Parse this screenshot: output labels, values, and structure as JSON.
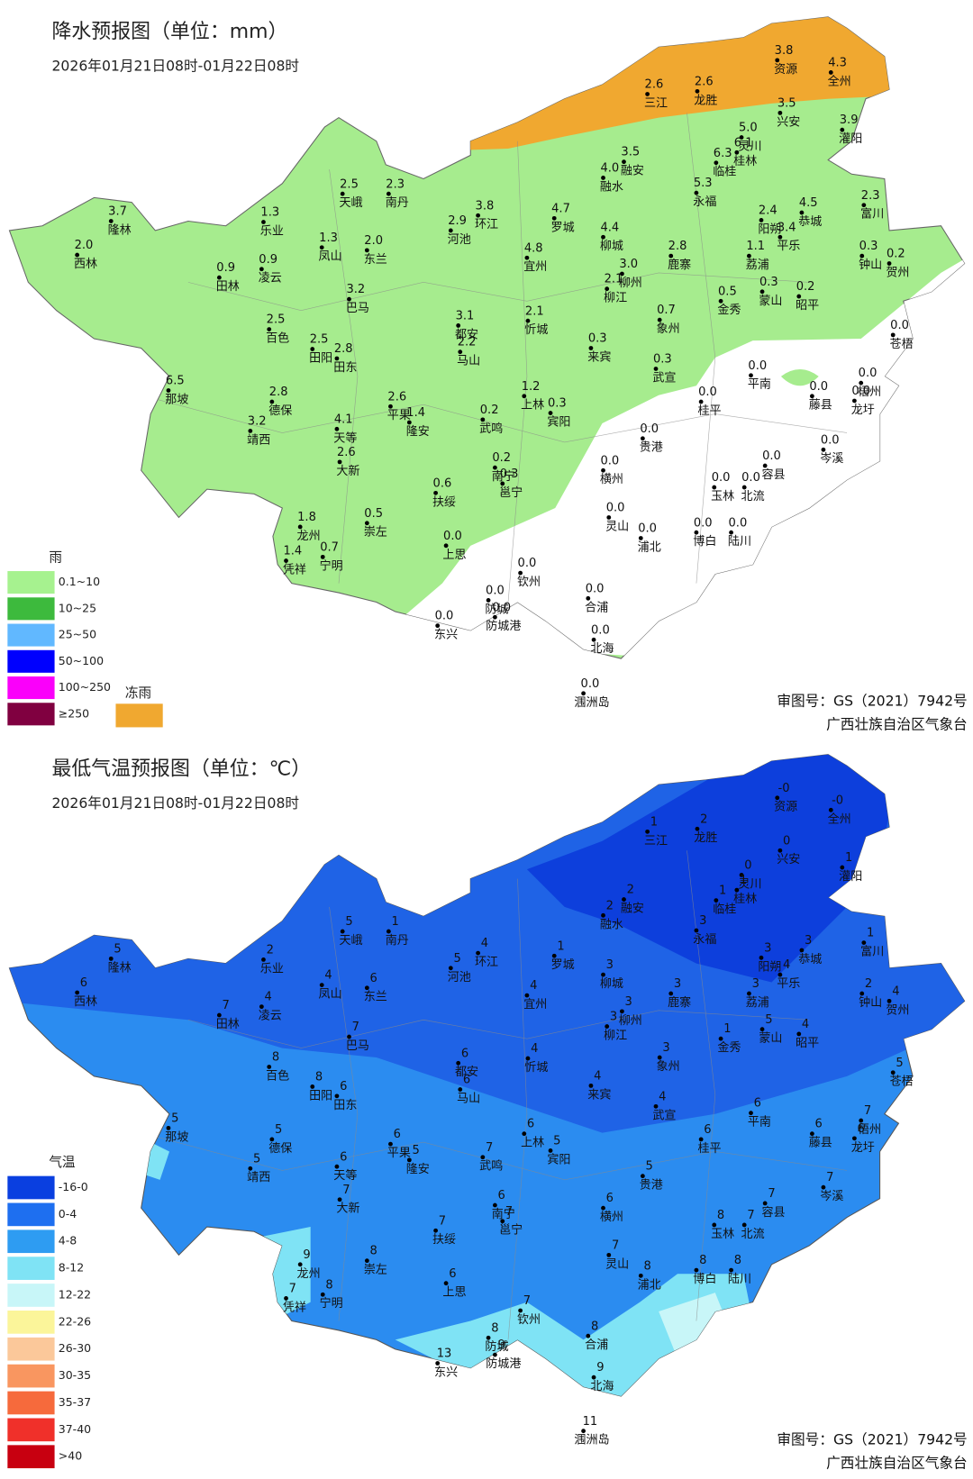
{
  "maps": [
    {
      "title": "降水预报图（单位：mm）",
      "period": "2026年01月21日08时-01月22日08时",
      "legend": {
        "title": "雨",
        "items": [
          {
            "label": "0.1~10",
            "color": "#a6f28f"
          },
          {
            "label": "10~25",
            "color": "#3dba3d"
          },
          {
            "label": "25~50",
            "color": "#61b8ff"
          },
          {
            "label": "50~100",
            "color": "#0000fe"
          },
          {
            "label": "100~250",
            "color": "#fa00fa"
          },
          {
            "label": "≥250",
            "color": "#800040"
          }
        ]
      },
      "extra_legend": {
        "label": "冻雨",
        "color": "#f0a830"
      },
      "approval": "审图号：GS（2021）7942号",
      "issuer": "广西壮族自治区气象台",
      "stations": [
        {
          "name": "三江",
          "value": "2.6"
        },
        {
          "name": "龙胜",
          "value": "2.6"
        },
        {
          "name": "资源",
          "value": "3.8"
        },
        {
          "name": "全州",
          "value": "4.3"
        },
        {
          "name": "兴安",
          "value": "3.5"
        },
        {
          "name": "灌阳",
          "value": "3.9"
        },
        {
          "name": "灵川",
          "value": "5.0"
        },
        {
          "name": "桂林",
          "value": "6.1"
        },
        {
          "name": "临桂",
          "value": "6.3"
        },
        {
          "name": "融安",
          "value": "3.5"
        },
        {
          "name": "融水",
          "value": "4.0"
        },
        {
          "name": "永福",
          "value": "5.3"
        },
        {
          "name": "阳朔",
          "value": "2.4"
        },
        {
          "name": "恭城",
          "value": "4.5"
        },
        {
          "name": "平乐",
          "value": "3.4"
        },
        {
          "name": "富川",
          "value": "2.3"
        },
        {
          "name": "钟山",
          "value": "0.3"
        },
        {
          "name": "贺州",
          "value": "0.2"
        },
        {
          "name": "荔浦",
          "value": "1.1"
        },
        {
          "name": "蒙山",
          "value": "0.3"
        },
        {
          "name": "昭平",
          "value": "0.2"
        },
        {
          "name": "金秀",
          "value": "0.5"
        },
        {
          "name": "鹿寨",
          "value": "2.8"
        },
        {
          "name": "象州",
          "value": "0.7"
        },
        {
          "name": "柳城",
          "value": "4.4"
        },
        {
          "name": "柳州",
          "value": "3.0"
        },
        {
          "name": "柳江",
          "value": "2.1"
        },
        {
          "name": "罗城",
          "value": "4.7"
        },
        {
          "name": "宜州",
          "value": "4.8"
        },
        {
          "name": "环江",
          "value": "3.8"
        },
        {
          "name": "河池",
          "value": "2.9"
        },
        {
          "name": "忻城",
          "value": "2.1"
        },
        {
          "name": "来宾",
          "value": "0.3"
        },
        {
          "name": "武宣",
          "value": "0.3"
        },
        {
          "name": "南丹",
          "value": "2.3"
        },
        {
          "name": "天峨",
          "value": "2.5"
        },
        {
          "name": "乐业",
          "value": "1.3"
        },
        {
          "name": "凤山",
          "value": "1.3"
        },
        {
          "name": "东兰",
          "value": "2.0"
        },
        {
          "name": "隆林",
          "value": "3.7"
        },
        {
          "name": "西林",
          "value": "2.0"
        },
        {
          "name": "田林",
          "value": "0.9"
        },
        {
          "name": "凌云",
          "value": "0.9"
        },
        {
          "name": "巴马",
          "value": "3.2"
        },
        {
          "name": "百色",
          "value": "2.5"
        },
        {
          "name": "田阳",
          "value": "2.5"
        },
        {
          "name": "田东",
          "value": "2.8"
        },
        {
          "name": "都安",
          "value": "3.1"
        },
        {
          "name": "马山",
          "value": "2.2"
        },
        {
          "name": "那坡",
          "value": "6.5"
        },
        {
          "name": "德保",
          "value": "2.8"
        },
        {
          "name": "靖西",
          "value": "3.2"
        },
        {
          "name": "平果",
          "value": "2.6"
        },
        {
          "name": "隆安",
          "value": "1.4"
        },
        {
          "name": "天等",
          "value": "4.1"
        },
        {
          "name": "大新",
          "value": "2.6"
        },
        {
          "name": "武鸣",
          "value": "0.2"
        },
        {
          "name": "上林",
          "value": "1.2"
        },
        {
          "name": "宾阳",
          "value": "0.3"
        },
        {
          "name": "南宁",
          "value": "0.2"
        },
        {
          "name": "邕宁",
          "value": "0.3"
        },
        {
          "name": "扶绥",
          "value": "0.6"
        },
        {
          "name": "崇左",
          "value": "0.5"
        },
        {
          "name": "龙州",
          "value": "1.8"
        },
        {
          "name": "凭祥",
          "value": "1.4"
        },
        {
          "name": "宁明",
          "value": "0.7"
        },
        {
          "name": "上思",
          "value": "0.0"
        },
        {
          "name": "贵港",
          "value": "0.0"
        },
        {
          "name": "桂平",
          "value": "0.0"
        },
        {
          "name": "平南",
          "value": "0.0"
        },
        {
          "name": "藤县",
          "value": "0.0"
        },
        {
          "name": "苍梧",
          "value": "0.0"
        },
        {
          "name": "梧州",
          "value": "0.0"
        },
        {
          "name": "龙圩",
          "value": "0.0"
        },
        {
          "name": "岑溪",
          "value": "0.0"
        },
        {
          "name": "横州",
          "value": "0.0"
        },
        {
          "name": "玉林",
          "value": "0.0"
        },
        {
          "name": "北流",
          "value": "0.0"
        },
        {
          "name": "容县",
          "value": "0.0"
        },
        {
          "name": "灵山",
          "value": "0.0"
        },
        {
          "name": "浦北",
          "value": "0.0"
        },
        {
          "name": "博白",
          "value": "0.0"
        },
        {
          "name": "陆川",
          "value": "0.0"
        },
        {
          "name": "钦州",
          "value": "0.0"
        },
        {
          "name": "防城",
          "value": "0.0"
        },
        {
          "name": "防城港",
          "value": "0.0"
        },
        {
          "name": "合浦",
          "value": "0.0"
        },
        {
          "name": "东兴",
          "value": "0.0"
        },
        {
          "name": "北海",
          "value": "0.0"
        },
        {
          "name": "涠洲岛",
          "value": "0.0"
        }
      ]
    },
    {
      "title": "最低气温预报图（单位：℃）",
      "period": "2026年01月21日08时-01月22日08时",
      "legend": {
        "title": "气温",
        "items": [
          {
            "label": "-16-0",
            "color": "#0a3fe0"
          },
          {
            "label": "0-4",
            "color": "#1e6ff0"
          },
          {
            "label": "4-8",
            "color": "#2e9cf2"
          },
          {
            "label": "8-12",
            "color": "#7fe3f5"
          },
          {
            "label": "12-22",
            "color": "#c8f6f8"
          },
          {
            "label": "22-26",
            "color": "#fbf59a"
          },
          {
            "label": "26-30",
            "color": "#fbc89a"
          },
          {
            "label": "30-35",
            "color": "#f99660"
          },
          {
            "label": "35-37",
            "color": "#f66a3c"
          },
          {
            "label": "37-40",
            "color": "#f0302a"
          },
          {
            "label": ">40",
            "color": "#c80010"
          }
        ]
      },
      "approval": "审图号：GS（2021）7942号",
      "issuer": "广西壮族自治区气象台",
      "stations": [
        {
          "name": "三江",
          "value": "1"
        },
        {
          "name": "龙胜",
          "value": "2"
        },
        {
          "name": "资源",
          "value": "-0"
        },
        {
          "name": "全州",
          "value": "-0"
        },
        {
          "name": "兴安",
          "value": "0"
        },
        {
          "name": "灌阳",
          "value": "1"
        },
        {
          "name": "灵川",
          "value": "0"
        },
        {
          "name": "桂林",
          "value": "1"
        },
        {
          "name": "临桂",
          "value": "1"
        },
        {
          "name": "融安",
          "value": "2"
        },
        {
          "name": "融水",
          "value": "2"
        },
        {
          "name": "永福",
          "value": "3"
        },
        {
          "name": "阳朔",
          "value": "3"
        },
        {
          "name": "恭城",
          "value": "3"
        },
        {
          "name": "平乐",
          "value": "4"
        },
        {
          "name": "富川",
          "value": "1"
        },
        {
          "name": "钟山",
          "value": "2"
        },
        {
          "name": "贺州",
          "value": "4"
        },
        {
          "name": "荔浦",
          "value": "3"
        },
        {
          "name": "蒙山",
          "value": "5"
        },
        {
          "name": "昭平",
          "value": "4"
        },
        {
          "name": "金秀",
          "value": "1"
        },
        {
          "name": "鹿寨",
          "value": "3"
        },
        {
          "name": "象州",
          "value": "3"
        },
        {
          "name": "柳城",
          "value": "3"
        },
        {
          "name": "柳州",
          "value": "3"
        },
        {
          "name": "柳江",
          "value": "3"
        },
        {
          "name": "罗城",
          "value": "1"
        },
        {
          "name": "宜州",
          "value": "4"
        },
        {
          "name": "环江",
          "value": "4"
        },
        {
          "name": "河池",
          "value": "5"
        },
        {
          "name": "忻城",
          "value": "4"
        },
        {
          "name": "来宾",
          "value": "4"
        },
        {
          "name": "武宣",
          "value": "4"
        },
        {
          "name": "南丹",
          "value": "1"
        },
        {
          "name": "天峨",
          "value": "5"
        },
        {
          "name": "乐业",
          "value": "2"
        },
        {
          "name": "凤山",
          "value": "4"
        },
        {
          "name": "东兰",
          "value": "6"
        },
        {
          "name": "隆林",
          "value": "5"
        },
        {
          "name": "西林",
          "value": "6"
        },
        {
          "name": "田林",
          "value": "7"
        },
        {
          "name": "凌云",
          "value": "4"
        },
        {
          "name": "巴马",
          "value": "7"
        },
        {
          "name": "百色",
          "value": "8"
        },
        {
          "name": "田阳",
          "value": "8"
        },
        {
          "name": "田东",
          "value": "6"
        },
        {
          "name": "都安",
          "value": "6"
        },
        {
          "name": "马山",
          "value": "6"
        },
        {
          "name": "那坡",
          "value": "5"
        },
        {
          "name": "德保",
          "value": "5"
        },
        {
          "name": "靖西",
          "value": "5"
        },
        {
          "name": "平果",
          "value": "6"
        },
        {
          "name": "隆安",
          "value": "5"
        },
        {
          "name": "天等",
          "value": "6"
        },
        {
          "name": "大新",
          "value": "7"
        },
        {
          "name": "武鸣",
          "value": "7"
        },
        {
          "name": "上林",
          "value": "6"
        },
        {
          "name": "宾阳",
          "value": "5"
        },
        {
          "name": "南宁",
          "value": "6"
        },
        {
          "name": "邕宁",
          "value": "7"
        },
        {
          "name": "扶绥",
          "value": "7"
        },
        {
          "name": "崇左",
          "value": "8"
        },
        {
          "name": "龙州",
          "value": "9"
        },
        {
          "name": "凭祥",
          "value": "7"
        },
        {
          "name": "宁明",
          "value": "8"
        },
        {
          "name": "上思",
          "value": "6"
        },
        {
          "name": "贵港",
          "value": "5"
        },
        {
          "name": "桂平",
          "value": "6"
        },
        {
          "name": "平南",
          "value": "6"
        },
        {
          "name": "藤县",
          "value": "6"
        },
        {
          "name": "苍梧",
          "value": "5"
        },
        {
          "name": "梧州",
          "value": "7"
        },
        {
          "name": "龙圩",
          "value": "6"
        },
        {
          "name": "岑溪",
          "value": "7"
        },
        {
          "name": "横州",
          "value": "6"
        },
        {
          "name": "玉林",
          "value": "8"
        },
        {
          "name": "北流",
          "value": "7"
        },
        {
          "name": "容县",
          "value": "7"
        },
        {
          "name": "灵山",
          "value": "7"
        },
        {
          "name": "浦北",
          "value": "8"
        },
        {
          "name": "博白",
          "value": "8"
        },
        {
          "name": "陆川",
          "value": "8"
        },
        {
          "name": "钦州",
          "value": "7"
        },
        {
          "name": "防城",
          "value": "8"
        },
        {
          "name": "防城港",
          "value": "9"
        },
        {
          "name": "合浦",
          "value": "8"
        },
        {
          "name": "东兴",
          "value": "13"
        },
        {
          "name": "北海",
          "value": "9"
        },
        {
          "name": "涠洲岛",
          "value": "11"
        }
      ]
    }
  ]
}
